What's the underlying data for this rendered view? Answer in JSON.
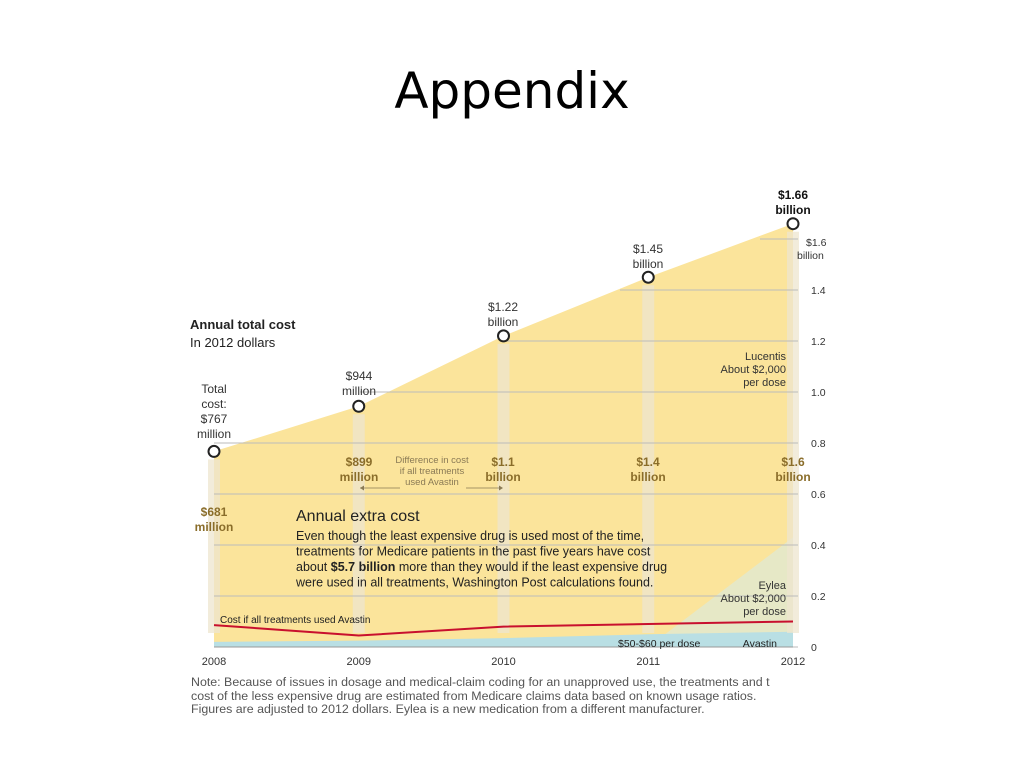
{
  "slide": {
    "title": "Appendix"
  },
  "chart_data": {
    "type": "area",
    "title": "Annual total cost",
    "subtitle": "In 2012 dollars",
    "x": [
      "2008",
      "2009",
      "2010",
      "2011",
      "2012"
    ],
    "ylim": [
      0,
      1.7
    ],
    "y_ticks": [
      "0",
      "0.2",
      "0.4",
      "0.6",
      "0.8",
      "1.0",
      "1.2",
      "1.4",
      "$1.6 billion"
    ],
    "y_tick_values": [
      0,
      0.2,
      0.4,
      0.6,
      0.8,
      1.0,
      1.2,
      1.4,
      1.6
    ],
    "grid": true,
    "series": [
      {
        "name": "Total cost",
        "values": [
          0.767,
          0.944,
          1.22,
          1.45,
          1.66
        ],
        "color": "#fbe49b"
      },
      {
        "name": "Avastin",
        "values": [
          0.02,
          0.025,
          0.035,
          0.05,
          0.06
        ],
        "color": "#b9dfe4"
      },
      {
        "name": "Eylea",
        "values": [
          0,
          0,
          0,
          0,
          0.43
        ],
        "color": "#e6e8c6"
      },
      {
        "name": "Cost if all treatments used Avastin",
        "values": [
          0.086,
          0.045,
          0.08,
          0.09,
          0.1
        ],
        "color": "#c8102e"
      }
    ],
    "difference_in_cost_billion": [
      0.681,
      0.899,
      1.1,
      1.4,
      1.6
    ],
    "point_labels": [
      [
        "Total",
        "cost:",
        "$767",
        "million"
      ],
      [
        "$944",
        "million"
      ],
      [
        "$1.22",
        "billion"
      ],
      [
        "$1.45",
        "billion"
      ],
      [
        "$1.66",
        "billion"
      ]
    ],
    "difference_labels": [
      [
        "$681",
        "million"
      ],
      [
        "$899",
        "million"
      ],
      [
        "$1.1",
        "billion"
      ],
      [
        "$1.4",
        "billion"
      ],
      [
        "$1.6",
        "billion"
      ]
    ],
    "annotations": {
      "difference_note": [
        "Difference in cost",
        "if all treatments",
        "used Avastin"
      ],
      "lucentis": [
        "Lucentis",
        "About $2,000",
        "per dose"
      ],
      "eylea": [
        "Eylea",
        "About $2,000",
        "per dose"
      ],
      "avastin_cost_line": "Cost if all treatments used Avastin",
      "avastin_dose": "$50-$60 per dose",
      "avastin_name": "Avastin",
      "extra_cost_title": "Annual extra cost",
      "extra_cost_body": [
        [
          "Even though the least expensive drug is used most of the time,"
        ],
        [
          "treatments for Medicare patients in the past five years have cost"
        ],
        [
          "about ",
          "$5.7 billion",
          " more than they would if the least expensive drug"
        ],
        [
          "were used in all treatments, Washington Post calculations found."
        ]
      ]
    },
    "colors": {
      "total_area": "#fbe49b",
      "avastin_area": "#b9dfe4",
      "eylea_area": "#e6e8c6",
      "avastin_line": "#c8102e",
      "column": "#ede6cf",
      "grid": "#bbbbbb"
    }
  },
  "note": [
    "Note: Because of issues in dosage and medical-claim coding for an unapproved use, the treatments and t",
    "cost of the less expensive drug are estimated from Medicare claims data based on known usage ratios.",
    "Figures are adjusted to 2012 dollars. Eylea is a new medication from a different manufacturer."
  ]
}
